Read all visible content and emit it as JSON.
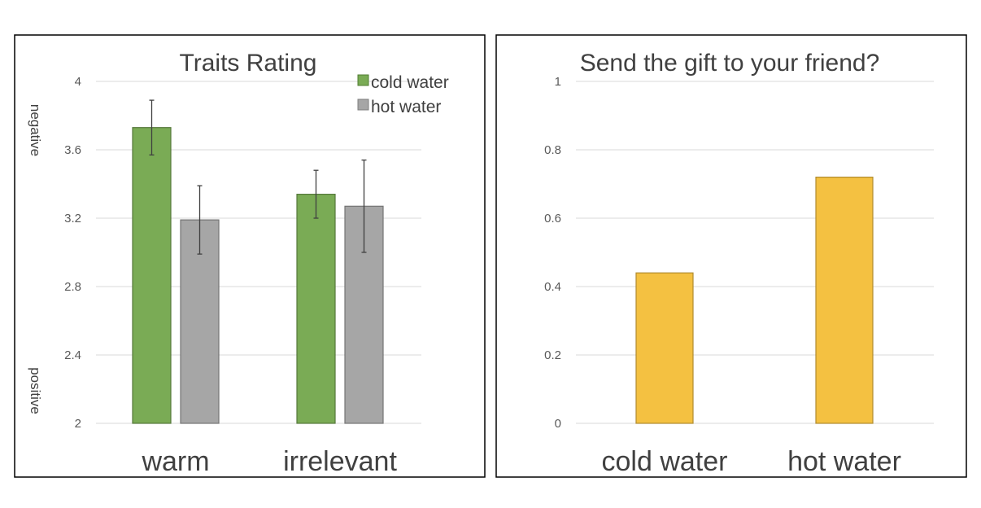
{
  "chart_data": [
    {
      "type": "bar",
      "title": "Traits Rating",
      "categories": [
        "warm",
        "irrelevant"
      ],
      "series": [
        {
          "name": "cold water",
          "values": [
            3.73,
            3.34
          ],
          "error": [
            0.16,
            0.14
          ],
          "color": "#7aab55"
        },
        {
          "name": "hot water",
          "values": [
            3.19,
            3.27
          ],
          "error": [
            0.2,
            0.27
          ],
          "color": "#a6a6a6"
        }
      ],
      "ylim": [
        2,
        4
      ],
      "yticks": [
        "2",
        "2.4",
        "2.8",
        "3.2",
        "3.6",
        "4"
      ],
      "annotations": {
        "top": "negative",
        "bottom": "positive"
      },
      "legend": "top-right",
      "grid": true
    },
    {
      "type": "bar",
      "title": "Send the gift to your friend?",
      "categories": [
        "cold water",
        "hot water"
      ],
      "series": [
        {
          "values": [
            0.44,
            0.72
          ],
          "color": "#f4c141"
        }
      ],
      "ylim": [
        0,
        1
      ],
      "yticks": [
        "0",
        "0.2",
        "0.4",
        "0.6",
        "0.8",
        "1"
      ],
      "grid": true
    }
  ]
}
